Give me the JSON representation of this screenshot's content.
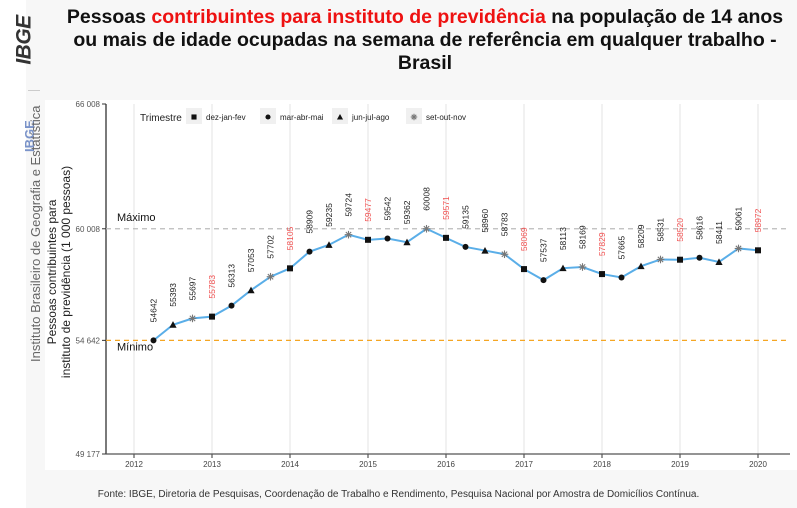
{
  "brand": {
    "logo": "IBGE",
    "side_short": "IBGE",
    "side_full": "Instituto Brasileiro de Geografia e Estatística"
  },
  "title": {
    "part1": "Pessoas ",
    "highlight": "contribuintes para instituto de previdência",
    "part2": " na população de 14 anos ou mais de idade ocupadas na semana de referência em qualquer trabalho - Brasil"
  },
  "footer": "Fonte: IBGE, Diretoria de Pesquisas, Coordenação de Trabalho e Rendimento, Pesquisa Nacional por Amostra de Domicílios Contínua.",
  "colors": {
    "line": "#5aaee8",
    "highlight_label": "#f05050",
    "max_line": "#bbbbbb",
    "min_line": "#f5a623",
    "title_highlight": "#ee1111"
  },
  "chart_data": {
    "type": "line",
    "title": "Pessoas contribuintes para instituto de previdência na população de 14 anos ou mais de idade ocupadas na semana de referência em qualquer trabalho - Brasil",
    "xlabel": "",
    "ylabel": "Pessoas contribuintes para instituto de previdência (1 000 pessoas)",
    "ylabel_lines": [
      "Pessoas contribuintes para",
      "instituto de previdência (1 000 pessoas)"
    ],
    "ylim": [
      49177,
      66008
    ],
    "yticks": [
      49177,
      54642,
      60008,
      66008
    ],
    "ytick_labels": [
      "49 177",
      "54 642",
      "60 008",
      "66 008"
    ],
    "xticks": [
      2012,
      2013,
      2014,
      2015,
      2016,
      2017,
      2018,
      2019,
      2020
    ],
    "xlim": [
      2011.75,
      2020.3
    ],
    "grid": true,
    "legend": {
      "title": "Trimestre",
      "position": "top-left",
      "entries": [
        {
          "label": "dez-jan-fev",
          "shape": "square"
        },
        {
          "label": "mar-abr-mai",
          "shape": "circle"
        },
        {
          "label": "jun-jul-ago",
          "shape": "triangle"
        },
        {
          "label": "set-out-nov",
          "shape": "asterisk"
        }
      ]
    },
    "reference_lines": [
      {
        "label": "Máximo",
        "value": 60008,
        "style": "dashed-gray"
      },
      {
        "label": "Mínimo",
        "value": 54642,
        "style": "dashed-orange"
      }
    ],
    "series": [
      {
        "name": "Pessoas contribuintes",
        "start": {
          "year": 2012,
          "quarter_index": 1
        },
        "shapes": [
          "circle",
          "triangle",
          "asterisk",
          "square",
          "circle",
          "triangle",
          "asterisk",
          "square",
          "circle",
          "triangle",
          "asterisk",
          "square",
          "circle",
          "triangle",
          "asterisk",
          "square",
          "circle",
          "triangle",
          "asterisk",
          "square",
          "circle",
          "triangle",
          "asterisk",
          "square",
          "circle",
          "triangle",
          "asterisk",
          "square",
          "circle",
          "triangle",
          "asterisk",
          "square"
        ],
        "values": [
          54642,
          55393,
          55697,
          55783,
          56313,
          57053,
          57702,
          58105,
          58909,
          59235,
          59724,
          59477,
          59542,
          59362,
          60008,
          59571,
          59135,
          58960,
          58783,
          58069,
          57537,
          58113,
          58169,
          57829,
          57665,
          58209,
          58531,
          58520,
          58616,
          58411,
          59061,
          58972
        ],
        "highlighted": [
          false,
          false,
          false,
          true,
          false,
          false,
          false,
          true,
          false,
          false,
          false,
          true,
          false,
          false,
          false,
          true,
          false,
          false,
          false,
          true,
          false,
          false,
          false,
          true,
          false,
          false,
          false,
          true,
          false,
          false,
          false,
          true
        ]
      }
    ]
  }
}
